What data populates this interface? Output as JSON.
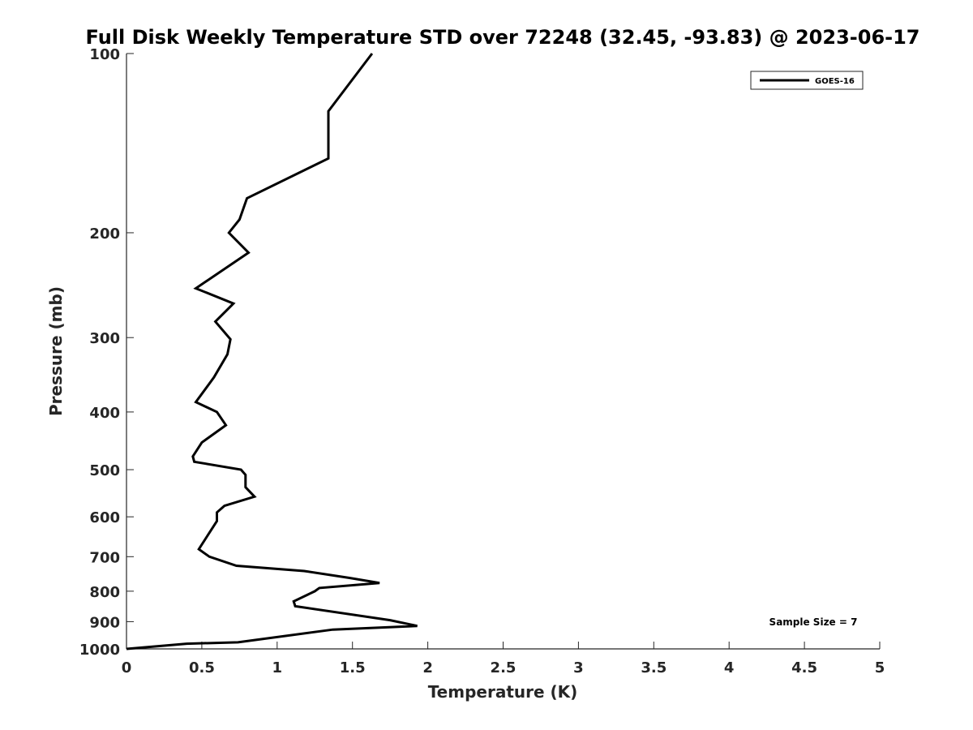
{
  "chart_data": {
    "type": "line",
    "title": "Full Disk Weekly Temperature STD over 72248 (32.45, -93.83) @ 2023-06-17",
    "xlabel": "Temperature (K)",
    "ylabel": "Pressure (mb)",
    "xlim": [
      0,
      5
    ],
    "ylim": [
      100,
      1000
    ],
    "y_scale": "log",
    "y_reversed": true,
    "grid": false,
    "legend_position": "top-right",
    "x_ticks": [
      "0",
      "0.5",
      "1",
      "1.5",
      "2",
      "2.5",
      "3",
      "3.5",
      "4",
      "4.5",
      "5"
    ],
    "y_ticks": [
      "100",
      "200",
      "300",
      "400",
      "500",
      "600",
      "700",
      "800",
      "900",
      "1000"
    ],
    "series": [
      {
        "name": "GOES-16",
        "color": "#000000",
        "points": [
          [
            1.63,
            100
          ],
          [
            1.34,
            125
          ],
          [
            1.34,
            150
          ],
          [
            0.8,
            175
          ],
          [
            0.75,
            190
          ],
          [
            0.68,
            200
          ],
          [
            0.81,
            216
          ],
          [
            0.46,
            248
          ],
          [
            0.71,
            263
          ],
          [
            0.59,
            282
          ],
          [
            0.69,
            302
          ],
          [
            0.67,
            320
          ],
          [
            0.58,
            350
          ],
          [
            0.46,
            385
          ],
          [
            0.6,
            400
          ],
          [
            0.66,
            421
          ],
          [
            0.5,
            450
          ],
          [
            0.44,
            475
          ],
          [
            0.45,
            485
          ],
          [
            0.76,
            500
          ],
          [
            0.79,
            510
          ],
          [
            0.79,
            535
          ],
          [
            0.85,
            555
          ],
          [
            0.65,
            575
          ],
          [
            0.6,
            590
          ],
          [
            0.6,
            610
          ],
          [
            0.48,
            680
          ],
          [
            0.55,
            700
          ],
          [
            0.73,
            725
          ],
          [
            1.18,
            740
          ],
          [
            1.48,
            760
          ],
          [
            1.68,
            775
          ],
          [
            1.28,
            790
          ],
          [
            1.25,
            800
          ],
          [
            1.11,
            832
          ],
          [
            1.12,
            848
          ],
          [
            1.75,
            895
          ],
          [
            1.93,
            915
          ],
          [
            1.37,
            928
          ],
          [
            0.74,
            975
          ],
          [
            0.4,
            980
          ],
          [
            0.0,
            1000
          ]
        ]
      }
    ],
    "annotation": "Sample Size = 7"
  }
}
